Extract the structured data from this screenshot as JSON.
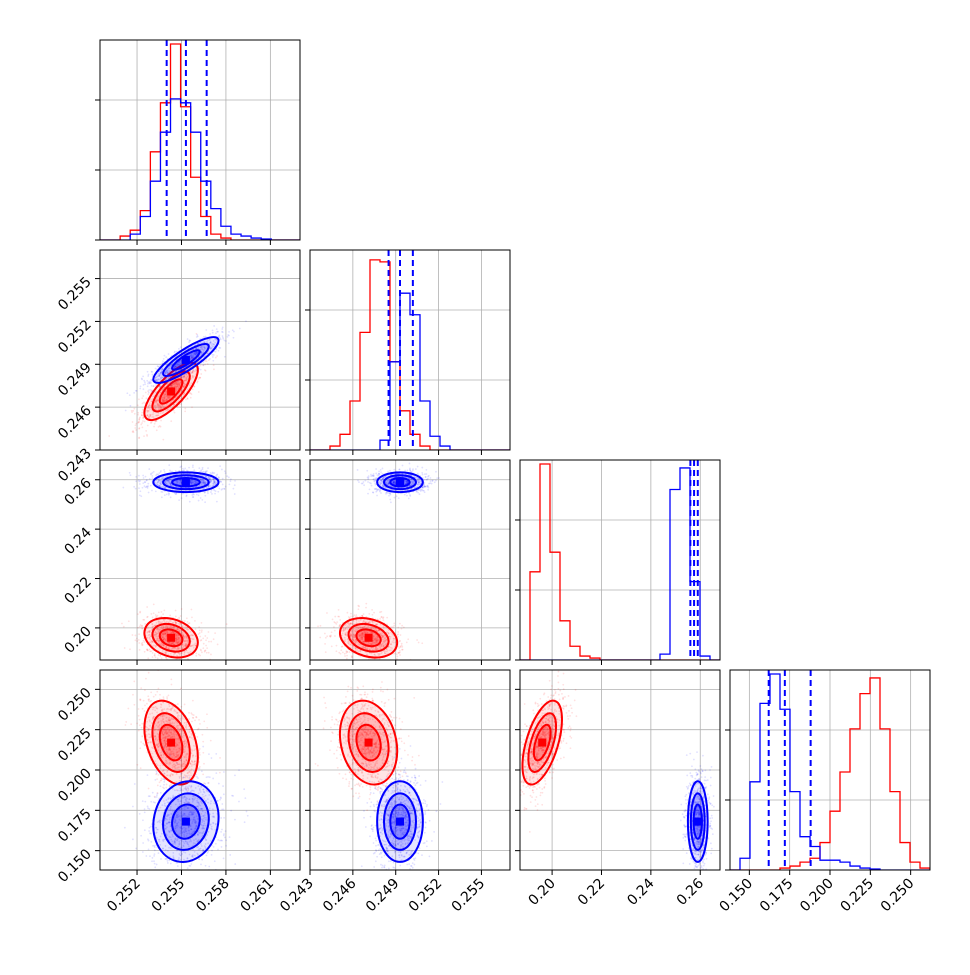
{
  "colors": {
    "red": "#ff0000",
    "blue": "#0000ff",
    "grid": "#b0b0b0",
    "axis": "#000000"
  },
  "chart_data": {
    "type": "corner",
    "title": "",
    "parameters": [
      "",
      "",
      "",
      ""
    ],
    "grid": true,
    "ranges": [
      [
        0.2495,
        0.263
      ],
      [
        0.243,
        0.257
      ],
      [
        0.187,
        0.268
      ],
      [
        0.138,
        0.262
      ]
    ],
    "ticks": [
      [
        "0.252",
        "0.255",
        "0.258",
        "0.261"
      ],
      [
        "0.243",
        "0.246",
        "0.249",
        "0.252",
        "0.255"
      ],
      [
        "0.20",
        "0.22",
        "0.24",
        "0.26"
      ],
      [
        "0.150",
        "0.175",
        "0.200",
        "0.225",
        "0.250"
      ]
    ],
    "tick_values": [
      [
        0.252,
        0.255,
        0.258,
        0.261
      ],
      [
        0.243,
        0.246,
        0.249,
        0.252,
        0.255
      ],
      [
        0.2,
        0.22,
        0.24,
        0.26
      ],
      [
        0.15,
        0.175,
        0.2,
        0.225,
        0.25
      ]
    ],
    "series": [
      {
        "color": "red",
        "means": [
          0.2543,
          0.2471,
          0.196,
          0.217
        ],
        "sigmas": [
          0.0009,
          0.001,
          0.004,
          0.013
        ],
        "correlations": {
          "1-0": 0.75,
          "2-0": -0.25,
          "2-1": -0.25,
          "3-0": -0.35,
          "3-1": -0.2,
          "3-2": 0.55
        },
        "histograms": [
          {
            "edges_from": 0.2495,
            "bin": 0.00068,
            "values": [
              0,
              0,
              0.02,
              0.05,
              0.15,
              0.45,
              0.7,
              1.0,
              0.68,
              0.32,
              0.12,
              0.03,
              0.01,
              0,
              0,
              0,
              0,
              0,
              0,
              0
            ]
          },
          {
            "edges_from": 0.243,
            "bin": 0.0007,
            "values": [
              0,
              0,
              0.02,
              0.08,
              0.25,
              0.6,
              0.97,
              0.96,
              0.45,
              0.2,
              0.08,
              0.02,
              0,
              0,
              0,
              0,
              0,
              0,
              0,
              0
            ]
          },
          {
            "edges_from": 0.187,
            "bin": 0.00405,
            "values": [
              0,
              0.45,
              1.0,
              0.55,
              0.2,
              0.07,
              0.02,
              0.01,
              0,
              0,
              0,
              0,
              0,
              0,
              0,
              0,
              0,
              0,
              0,
              0
            ]
          },
          {
            "edges_from": 0.138,
            "bin": 0.0062,
            "values": [
              0,
              0,
              0,
              0,
              0,
              0.01,
              0.02,
              0.04,
              0.06,
              0.14,
              0.3,
              0.5,
              0.72,
              0.9,
              0.98,
              0.72,
              0.4,
              0.14,
              0.04,
              0.01
            ]
          }
        ]
      },
      {
        "color": "blue",
        "means": [
          0.2553,
          0.2493,
          0.259,
          0.168
        ],
        "sigmas": [
          0.0011,
          0.0008,
          0.002,
          0.0125
        ],
        "correlations": {
          "1-0": 0.85,
          "2-0": 0.0,
          "2-1": 0.0,
          "3-0": 0.1,
          "3-1": 0.0,
          "3-2": 0.0
        },
        "quantile_lines": [
          [
            0.254,
            0.2553,
            0.2567
          ],
          [
            0.2485,
            0.2493,
            0.2502
          ],
          [
            0.256,
            0.2575,
            0.259
          ],
          [
            0.162,
            0.172,
            0.188
          ]
        ],
        "histograms": [
          {
            "edges_from": 0.2495,
            "bin": 0.00068,
            "values": [
              0,
              0,
              0,
              0.03,
              0.12,
              0.3,
              0.55,
              0.72,
              0.7,
              0.55,
              0.3,
              0.16,
              0.07,
              0.03,
              0.02,
              0.01,
              0.005,
              0,
              0,
              0
            ]
          },
          {
            "edges_from": 0.243,
            "bin": 0.0007,
            "values": [
              0,
              0,
              0,
              0,
              0,
              0,
              0,
              0.05,
              0.45,
              0.8,
              0.69,
              0.25,
              0.07,
              0.02,
              0,
              0,
              0,
              0,
              0,
              0
            ]
          },
          {
            "edges_from": 0.187,
            "bin": 0.00405,
            "values": [
              0,
              0,
              0,
              0,
              0,
              0,
              0,
              0,
              0,
              0,
              0,
              0,
              0,
              0,
              0.03,
              0.87,
              0.98,
              0.4,
              0.02,
              0
            ]
          },
          {
            "edges_from": 0.138,
            "bin": 0.0062,
            "values": [
              0,
              0.06,
              0.45,
              0.85,
              1.0,
              0.82,
              0.4,
              0.17,
              0.12,
              0.05,
              0.05,
              0.04,
              0.02,
              0.01,
              0.005,
              0,
              0,
              0,
              0,
              0
            ]
          }
        ]
      }
    ]
  }
}
